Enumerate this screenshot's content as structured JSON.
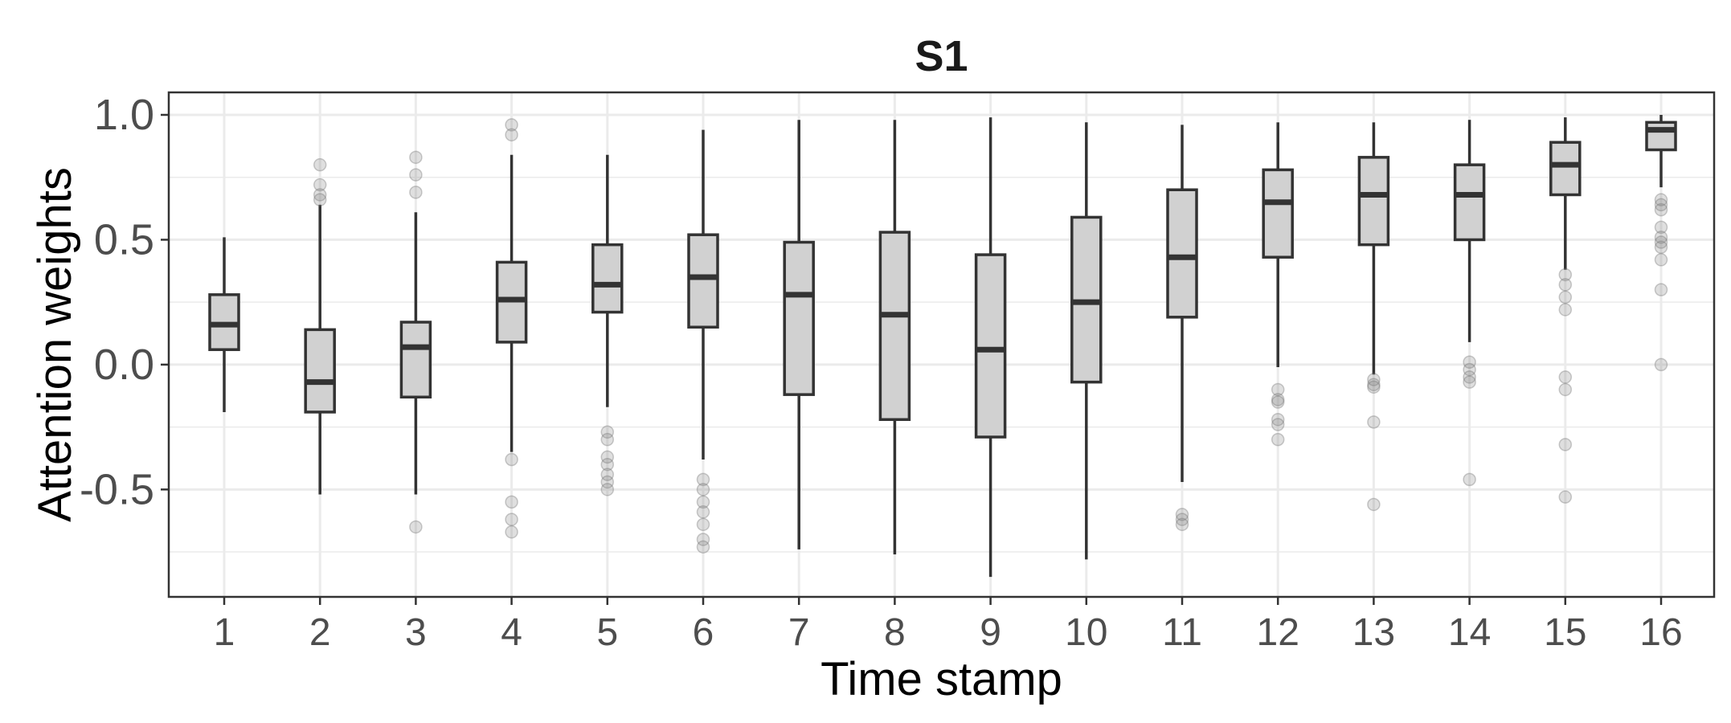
{
  "chart_data": {
    "type": "boxplot",
    "title": "S1",
    "xlabel": "Time stamp",
    "ylabel": "Attention weights",
    "categories": [
      "1",
      "2",
      "3",
      "4",
      "5",
      "6",
      "7",
      "8",
      "9",
      "10",
      "11",
      "12",
      "13",
      "14",
      "15",
      "16"
    ],
    "yticks": [
      -0.5,
      0.0,
      0.5,
      1.0
    ],
    "ytick_labels": [
      "-0.5",
      "0.0",
      "0.5",
      "1.0"
    ],
    "ylim": [
      -0.93,
      1.09
    ],
    "grid": true,
    "boxes": [
      {
        "x": "1",
        "whislo": -0.19,
        "q1": 0.06,
        "med": 0.16,
        "q3": 0.28,
        "whishi": 0.51,
        "outliers": []
      },
      {
        "x": "2",
        "whislo": -0.52,
        "q1": -0.19,
        "med": -0.07,
        "q3": 0.14,
        "whishi": 0.64,
        "outliers": [
          0.8,
          0.72,
          0.68,
          0.66
        ]
      },
      {
        "x": "3",
        "whislo": -0.52,
        "q1": -0.13,
        "med": 0.07,
        "q3": 0.17,
        "whishi": 0.61,
        "outliers": [
          0.83,
          0.76,
          0.69,
          -0.65
        ]
      },
      {
        "x": "4",
        "whislo": -0.35,
        "q1": 0.09,
        "med": 0.26,
        "q3": 0.41,
        "whishi": 0.84,
        "outliers": [
          0.96,
          0.92,
          -0.38,
          -0.55,
          -0.62,
          -0.67
        ]
      },
      {
        "x": "5",
        "whislo": -0.17,
        "q1": 0.21,
        "med": 0.32,
        "q3": 0.48,
        "whishi": 0.84,
        "outliers": [
          -0.27,
          -0.3,
          -0.37,
          -0.4,
          -0.44,
          -0.47,
          -0.5
        ]
      },
      {
        "x": "6",
        "whislo": -0.38,
        "q1": 0.15,
        "med": 0.35,
        "q3": 0.52,
        "whishi": 0.94,
        "outliers": [
          -0.46,
          -0.5,
          -0.55,
          -0.59,
          -0.64,
          -0.7,
          -0.73
        ]
      },
      {
        "x": "7",
        "whislo": -0.74,
        "q1": -0.12,
        "med": 0.28,
        "q3": 0.49,
        "whishi": 0.98,
        "outliers": []
      },
      {
        "x": "8",
        "whislo": -0.76,
        "q1": -0.22,
        "med": 0.2,
        "q3": 0.53,
        "whishi": 0.98,
        "outliers": []
      },
      {
        "x": "9",
        "whislo": -0.85,
        "q1": -0.29,
        "med": 0.06,
        "q3": 0.44,
        "whishi": 0.99,
        "outliers": []
      },
      {
        "x": "10",
        "whislo": -0.78,
        "q1": -0.07,
        "med": 0.25,
        "q3": 0.59,
        "whishi": 0.97,
        "outliers": []
      },
      {
        "x": "11",
        "whislo": -0.47,
        "q1": 0.19,
        "med": 0.43,
        "q3": 0.7,
        "whishi": 0.96,
        "outliers": [
          -0.6,
          -0.62,
          -0.64
        ]
      },
      {
        "x": "12",
        "whislo": -0.01,
        "q1": 0.43,
        "med": 0.65,
        "q3": 0.78,
        "whishi": 0.97,
        "outliers": [
          -0.1,
          -0.14,
          -0.15,
          -0.22,
          -0.24,
          -0.3
        ]
      },
      {
        "x": "13",
        "whislo": -0.04,
        "q1": 0.48,
        "med": 0.68,
        "q3": 0.83,
        "whishi": 0.97,
        "outliers": [
          -0.06,
          -0.08,
          -0.09,
          -0.23,
          -0.56
        ]
      },
      {
        "x": "14",
        "whislo": 0.09,
        "q1": 0.5,
        "med": 0.68,
        "q3": 0.8,
        "whishi": 0.98,
        "outliers": [
          0.01,
          -0.02,
          -0.05,
          -0.07,
          -0.46
        ]
      },
      {
        "x": "15",
        "whislo": 0.38,
        "q1": 0.68,
        "med": 0.8,
        "q3": 0.89,
        "whishi": 0.99,
        "outliers": [
          0.36,
          0.32,
          0.27,
          0.22,
          -0.05,
          -0.1,
          -0.32,
          -0.53
        ]
      },
      {
        "x": "16",
        "whislo": 0.71,
        "q1": 0.86,
        "med": 0.94,
        "q3": 0.97,
        "whishi": 1.0,
        "outliers": [
          0.66,
          0.64,
          0.62,
          0.55,
          0.51,
          0.49,
          0.47,
          0.42,
          0.3,
          0.0
        ]
      }
    ]
  }
}
